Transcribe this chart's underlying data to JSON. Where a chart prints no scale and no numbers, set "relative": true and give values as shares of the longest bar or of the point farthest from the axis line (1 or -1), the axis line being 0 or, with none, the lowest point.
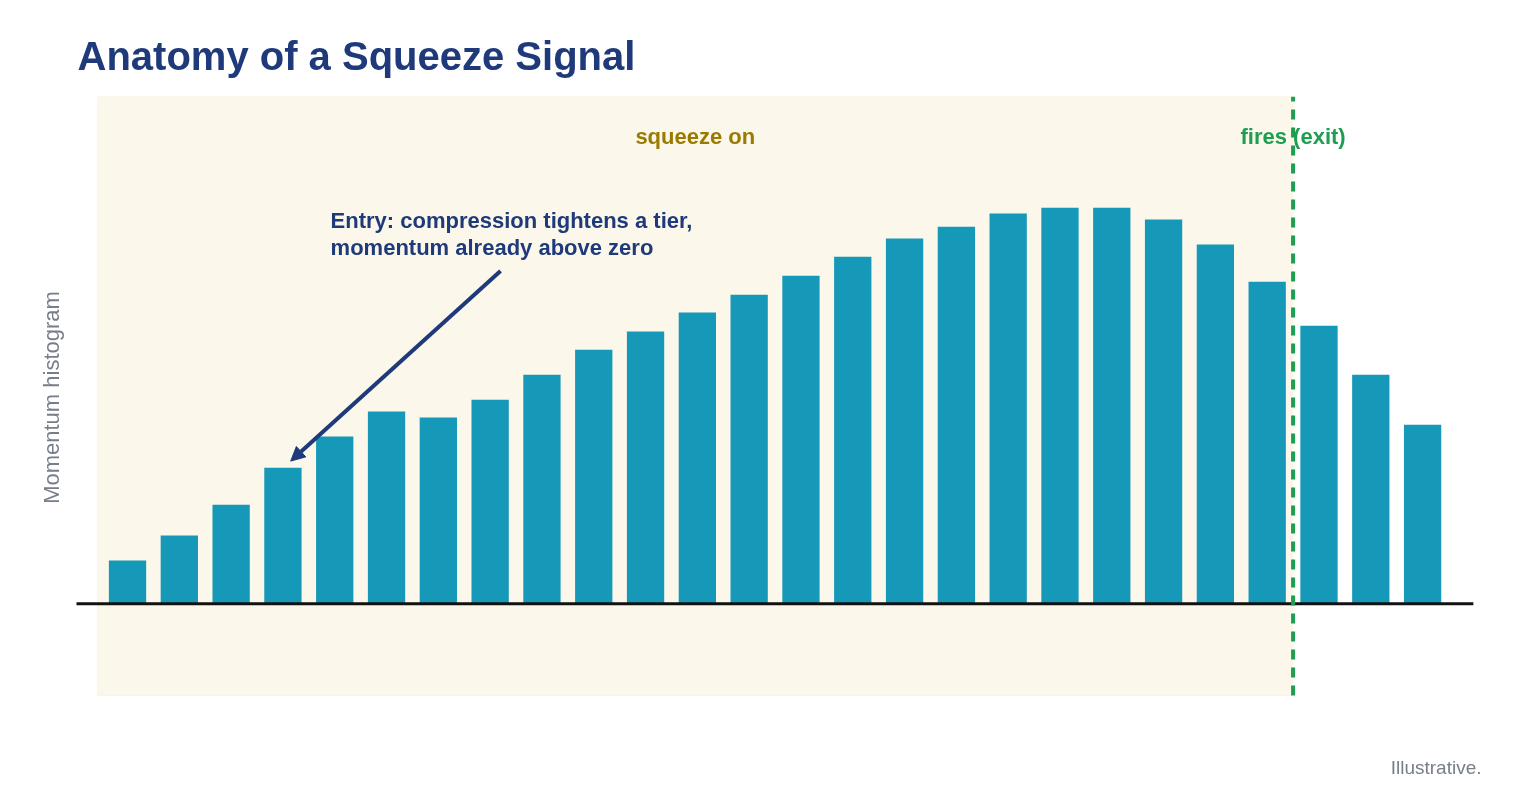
{
  "chart_data": {
    "type": "bar",
    "title": "Anatomy of a Squeeze Signal",
    "ylabel": "Momentum histogram",
    "relative": true,
    "categories": [
      null,
      null,
      null,
      null,
      null,
      null,
      null,
      null,
      null,
      null,
      null,
      null,
      null,
      null,
      null,
      null,
      null,
      null,
      null,
      null,
      null,
      null,
      null,
      null,
      null,
      null
    ],
    "values": [
      0.109,
      0.172,
      0.25,
      0.343,
      0.422,
      0.485,
      0.47,
      0.515,
      0.578,
      0.641,
      0.687,
      0.735,
      0.78,
      0.828,
      0.876,
      0.922,
      0.952,
      0.985,
      1,
      1,
      0.97,
      0.907,
      0.813,
      0.702,
      0.578,
      0.452
    ],
    "color": "#1699b8",
    "annotations": [
      "squeeze on",
      "fires (exit)",
      "Entry: compression tightens a tier, momentum already above zero",
      "Illustrative."
    ]
  }
}
